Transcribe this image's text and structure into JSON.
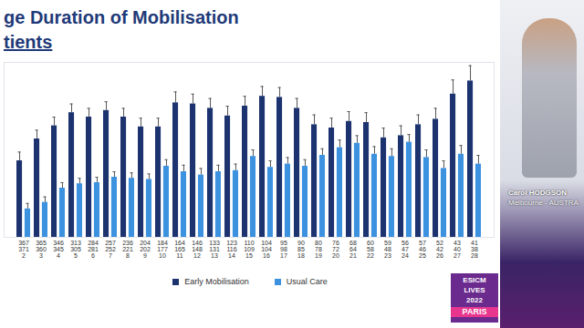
{
  "chart_data": {
    "type": "bar",
    "title": "ge Duration of Mobilisation",
    "subtitle": "tients",
    "categories": [
      "2",
      "3",
      "4",
      "5",
      "6",
      "7",
      "8",
      "9",
      "10",
      "11",
      "12",
      "13",
      "14",
      "15",
      "16",
      "17",
      "18",
      "19",
      "20",
      "21",
      "22",
      "23",
      "24",
      "25",
      "26",
      "27",
      "28"
    ],
    "series": [
      {
        "name": "Early Mobilisation",
        "color": "#1c3370",
        "values": [
          70,
          90,
          102,
          114,
          110,
          116,
          110,
          101,
          101,
          123,
          122,
          118,
          111,
          120,
          129,
          128,
          118,
          103,
          100,
          106,
          105,
          91,
          93,
          103,
          108,
          131,
          143
        ],
        "errors": [
          8,
          8,
          8,
          8,
          8,
          8,
          8,
          8,
          8,
          10,
          9,
          9,
          9,
          9,
          9,
          9,
          9,
          9,
          9,
          9,
          9,
          9,
          9,
          9,
          10,
          13,
          14
        ],
        "n": [
          367,
          365,
          346,
          313,
          284,
          257,
          236,
          204,
          184,
          164,
          146,
          133,
          123,
          110,
          104,
          95,
          90,
          80,
          76,
          68,
          60,
          59,
          56,
          57,
          52,
          43,
          41
        ]
      },
      {
        "name": "Usual Care",
        "color": "#3d92e0",
        "values": [
          26,
          32,
          45,
          49,
          50,
          55,
          54,
          53,
          65,
          60,
          57,
          60,
          61,
          74,
          64,
          67,
          65,
          75,
          82,
          86,
          76,
          74,
          87,
          73,
          63,
          76,
          67
        ],
        "errors": [
          5,
          5,
          5,
          5,
          5,
          5,
          5,
          5,
          6,
          6,
          6,
          6,
          6,
          6,
          6,
          6,
          6,
          6,
          7,
          7,
          7,
          7,
          7,
          7,
          7,
          8,
          8
        ],
        "n": [
          371,
          360,
          345,
          305,
          281,
          252,
          221,
          202,
          177,
          165,
          148,
          131,
          116,
          109,
          104,
          98,
          85,
          78,
          72,
          64,
          58,
          48,
          47,
          46,
          42,
          40,
          38
        ]
      }
    ],
    "ylim": [
      0,
      160
    ],
    "tick_labels": "x",
    "legend": "bottom",
    "grid": false
  },
  "speaker": {
    "name": "Carol HODGSON",
    "location": "Melbourne - AUSTRA"
  },
  "logo": [
    "ESICM",
    "LIVES",
    "2022",
    "PARIS"
  ]
}
